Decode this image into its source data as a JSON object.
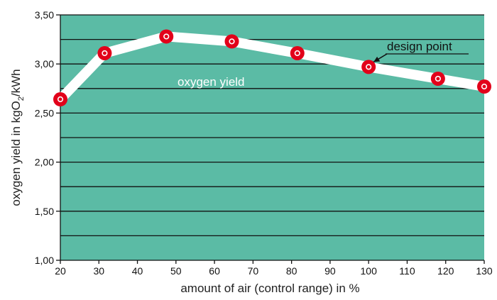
{
  "chart_data": {
    "type": "line",
    "xlabel": "amount of air (control range) in %",
    "ylabel": "oxygen yield in kgO",
    "ylabel_sub": "2",
    "ylabel_tail": "/kWh",
    "xlim": [
      20,
      130
    ],
    "ylim": [
      1.0,
      3.5
    ],
    "x_ticks": [
      20,
      30,
      40,
      50,
      60,
      70,
      80,
      90,
      100,
      110,
      120,
      130
    ],
    "y_ticks": [
      "1,00",
      "1,50",
      "2,00",
      "2,50",
      "3,00",
      "3,50"
    ],
    "y_tick_values": [
      1.0,
      1.5,
      2.0,
      2.5,
      3.0,
      3.5
    ],
    "y_gridlines": [
      1.25,
      1.5,
      1.75,
      2.0,
      2.25,
      2.5,
      2.75,
      3.0,
      3.25,
      3.5
    ],
    "grid": true,
    "series": [
      {
        "name": "oxygen yield",
        "x": [
          20,
          31.5,
          47.5,
          64.5,
          81.5,
          100,
          118,
          130
        ],
        "values": [
          2.64,
          3.11,
          3.28,
          3.23,
          3.11,
          2.97,
          2.85,
          2.77
        ]
      }
    ],
    "annotations": [
      {
        "text": "design point",
        "x": 100,
        "y": 2.97
      }
    ],
    "colors": {
      "plot_background": "#5bbba5",
      "gridline": "#111111",
      "line": "#ffffff",
      "marker": "#e2001a",
      "marker_center": "#ffffff"
    }
  }
}
